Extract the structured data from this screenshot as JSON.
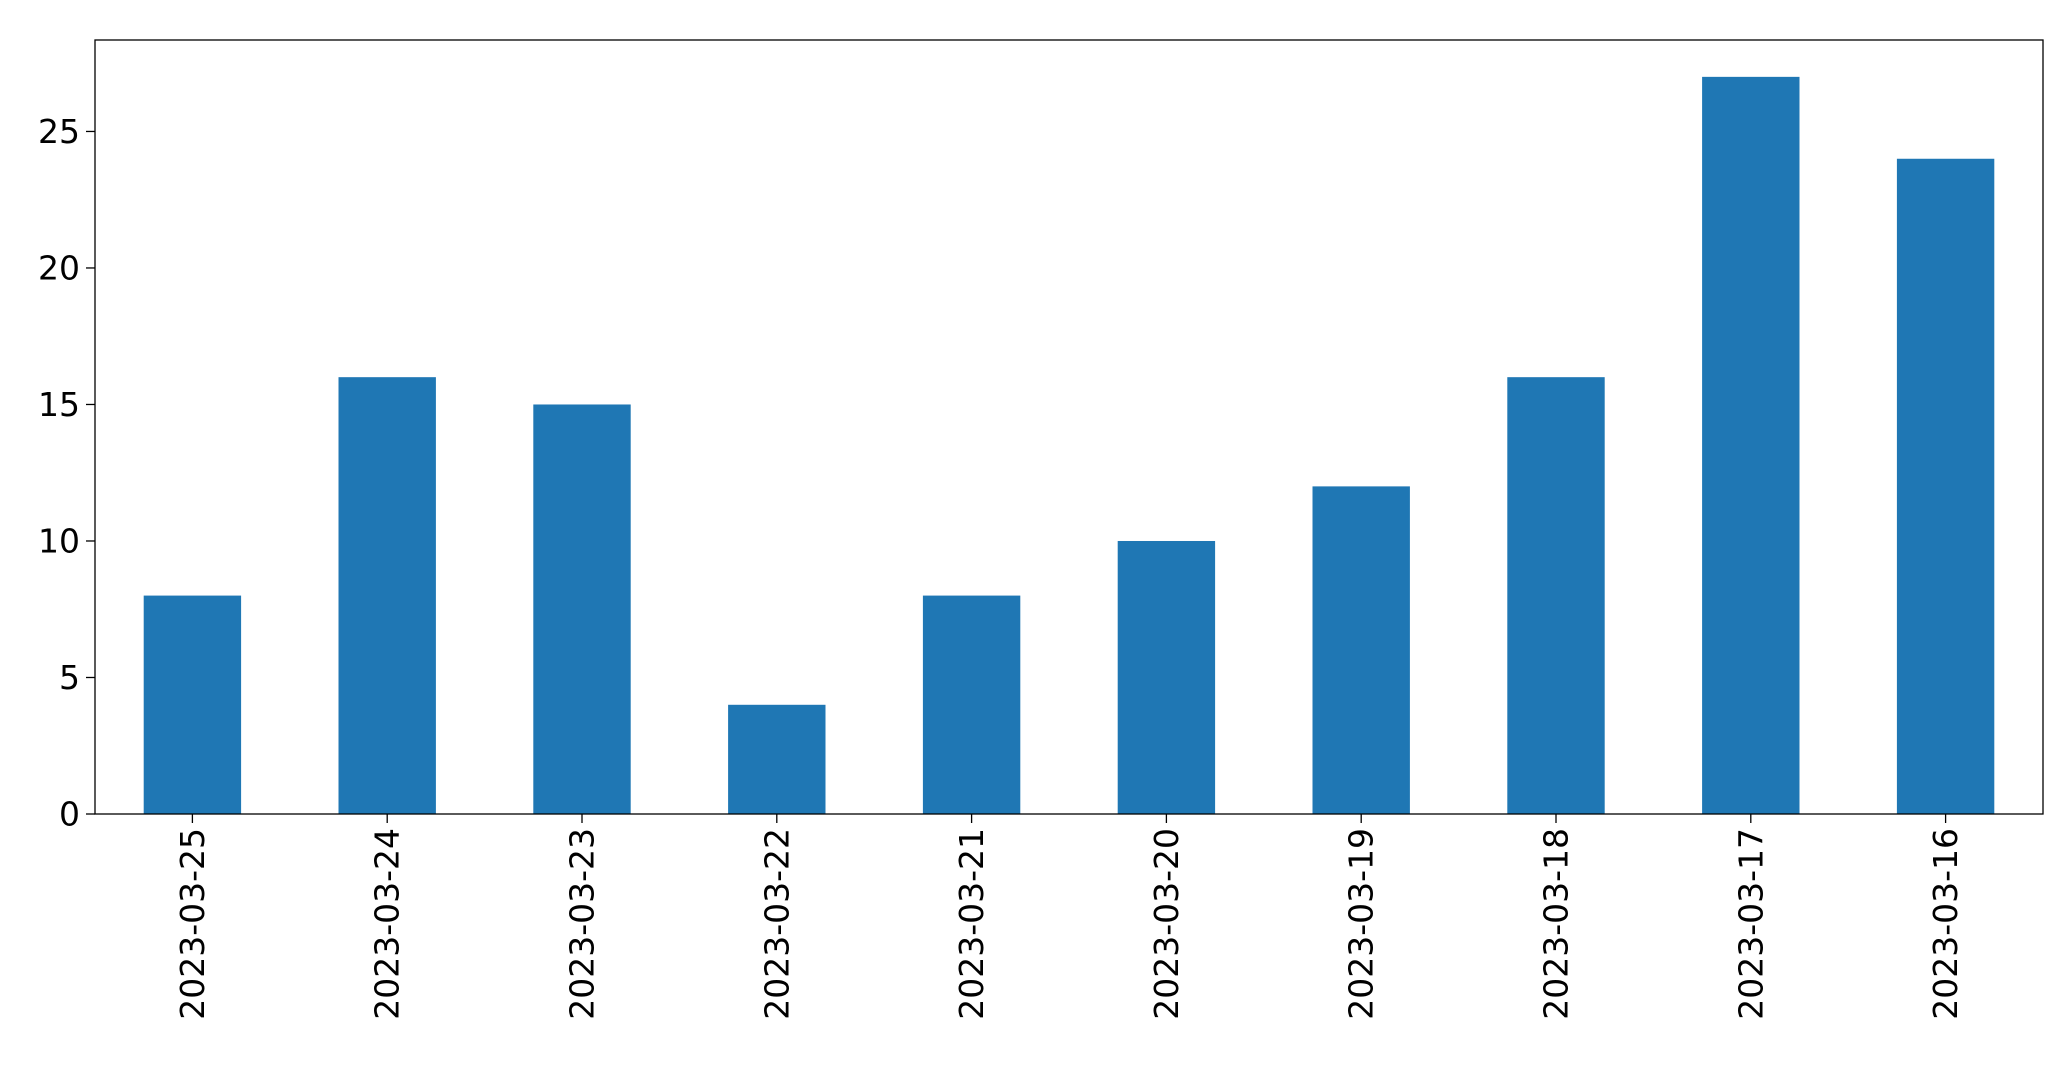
{
  "chart_data": {
    "type": "bar",
    "title": "",
    "xlabel": "",
    "ylabel": "",
    "categories": [
      "2023-03-25",
      "2023-03-24",
      "2023-03-23",
      "2023-03-22",
      "2023-03-21",
      "2023-03-20",
      "2023-03-19",
      "2023-03-18",
      "2023-03-17",
      "2023-03-16"
    ],
    "values": [
      8,
      16,
      15,
      4,
      8,
      10,
      12,
      16,
      27,
      24
    ],
    "ylim": [
      0,
      28.35
    ],
    "yticks": [
      0,
      5,
      10,
      15,
      20,
      25
    ],
    "grid": false,
    "legend": "none",
    "bar_color": "#1f77b4"
  }
}
